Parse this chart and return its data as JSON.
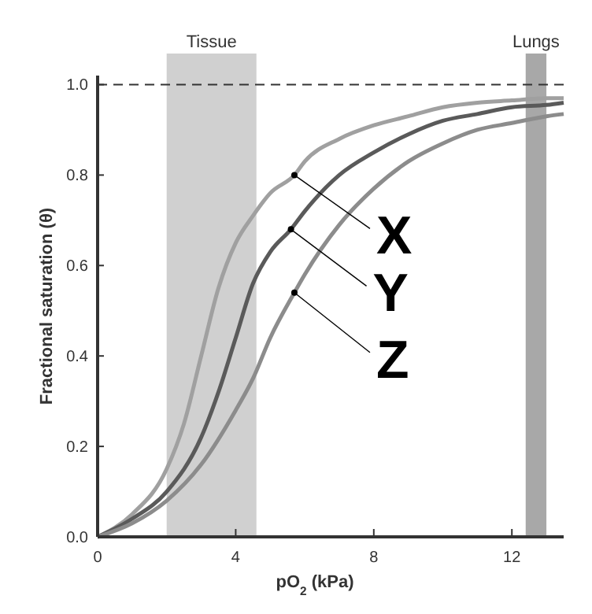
{
  "chart_data": {
    "type": "line",
    "xlabel": "pO$_{2}$ (kPa)",
    "ylabel": "Fractional saturation (θ)",
    "x": [
      0,
      1,
      2,
      2.5,
      3,
      3.5,
      4,
      4.5,
      5,
      5.7,
      6,
      7,
      8,
      9,
      10,
      11,
      12,
      13,
      13.5
    ],
    "series": [
      {
        "name": "X",
        "color": "#a0a0a0",
        "values": [
          0,
          0.05,
          0.15,
          0.25,
          0.4,
          0.55,
          0.65,
          0.71,
          0.76,
          0.8,
          0.83,
          0.88,
          0.91,
          0.93,
          0.95,
          0.96,
          0.965,
          0.97,
          0.97
        ]
      },
      {
        "name": "Y",
        "color": "#5a5a5a",
        "x": [
          0,
          1,
          2,
          3,
          3.5,
          4,
          4.5,
          5,
          5.6,
          6,
          7,
          8,
          9,
          10,
          11,
          12,
          13,
          13.5
        ],
        "values": [
          0,
          0.04,
          0.1,
          0.22,
          0.32,
          0.44,
          0.56,
          0.63,
          0.68,
          0.72,
          0.8,
          0.85,
          0.89,
          0.92,
          0.935,
          0.95,
          0.955,
          0.96
        ]
      },
      {
        "name": "Z",
        "color": "#8c8c8c",
        "x": [
          0,
          1,
          2,
          3,
          4,
          4.5,
          5,
          5.7,
          6,
          7,
          8,
          9,
          10,
          11,
          12,
          13,
          13.5
        ],
        "values": [
          0,
          0.03,
          0.08,
          0.16,
          0.28,
          0.35,
          0.44,
          0.54,
          0.58,
          0.69,
          0.77,
          0.83,
          0.87,
          0.9,
          0.915,
          0.93,
          0.935
        ]
      }
    ],
    "xlim": [
      0,
      13.5
    ],
    "ylim": [
      0,
      1.02
    ],
    "xticks": [
      0,
      4,
      8,
      12
    ],
    "yticks": [
      {
        "value": 0,
        "label": "0.0"
      },
      0.2,
      0.4,
      0.6,
      0.8,
      {
        "value": 1,
        "label": "1.0"
      }
    ],
    "grid": false,
    "marker": "none",
    "line_style": "solid",
    "legend": "right",
    "bands": [
      {
        "axis": "x",
        "from": 2,
        "to": 4.6,
        "label": "Tissue",
        "color": "#d0d0d0"
      },
      {
        "axis": "x",
        "from": 12.4,
        "to": 13,
        "label": "Lungs",
        "color": "#a8a8a8"
      }
    ],
    "ref_lines": [
      {
        "axis": "y",
        "value": 1,
        "line_style": "dashed",
        "color": "#333333"
      }
    ]
  }
}
